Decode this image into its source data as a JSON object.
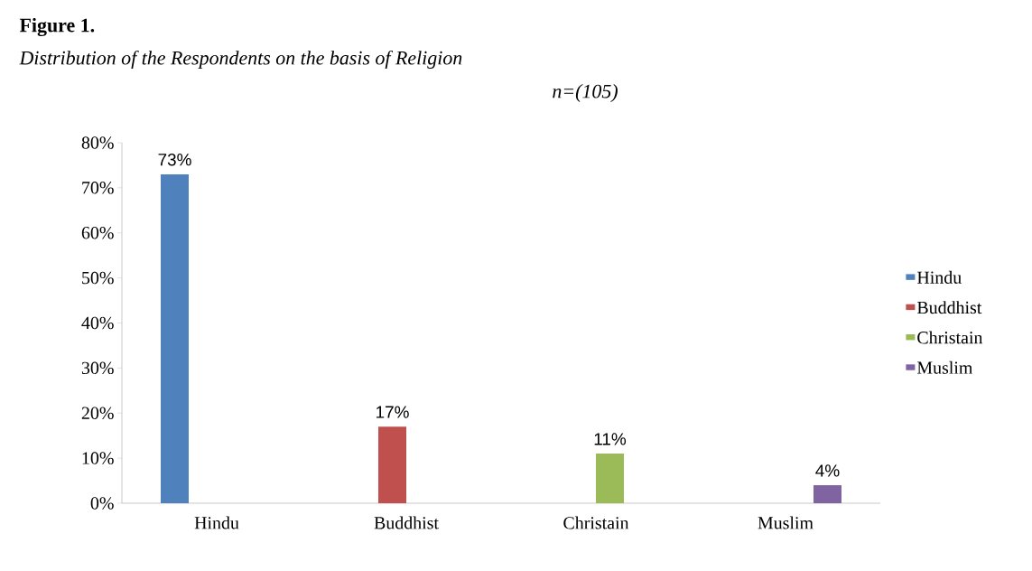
{
  "chart_data": {
    "type": "bar",
    "title": "Figure 1.",
    "subtitle": "Distribution of the Respondents on the basis of Religion",
    "annotations": [
      "n=(105)"
    ],
    "categories": [
      "Hindu",
      "Buddhist",
      "Christain",
      "Muslim"
    ],
    "series": [
      {
        "name": "Hindu",
        "color": "#4f81bd",
        "values": [
          73,
          null,
          null,
          null
        ],
        "value_labels": [
          "73%",
          null,
          null,
          null
        ]
      },
      {
        "name": "Buddhist",
        "color": "#c0504d",
        "values": [
          null,
          17,
          null,
          null
        ],
        "value_labels": [
          null,
          "17%",
          null,
          null
        ]
      },
      {
        "name": "Christain",
        "color": "#9bbb59",
        "values": [
          null,
          null,
          11,
          null
        ],
        "value_labels": [
          null,
          null,
          "11%",
          null
        ]
      },
      {
        "name": "Muslim",
        "color": "#8064a2",
        "values": [
          null,
          null,
          null,
          4
        ],
        "value_labels": [
          null,
          null,
          null,
          "4%"
        ]
      }
    ],
    "ylim": [
      0,
      80
    ],
    "yticks": [
      {
        "value": 0,
        "label": "0%"
      },
      {
        "value": 10,
        "label": "10%"
      },
      {
        "value": 20,
        "label": "20%"
      },
      {
        "value": 30,
        "label": "30%"
      },
      {
        "value": 40,
        "label": "40%"
      },
      {
        "value": 50,
        "label": "50%"
      },
      {
        "value": 60,
        "label": "60%"
      },
      {
        "value": 70,
        "label": "70%"
      },
      {
        "value": 80,
        "label": "80%"
      }
    ],
    "grid": false,
    "legend": "right"
  }
}
